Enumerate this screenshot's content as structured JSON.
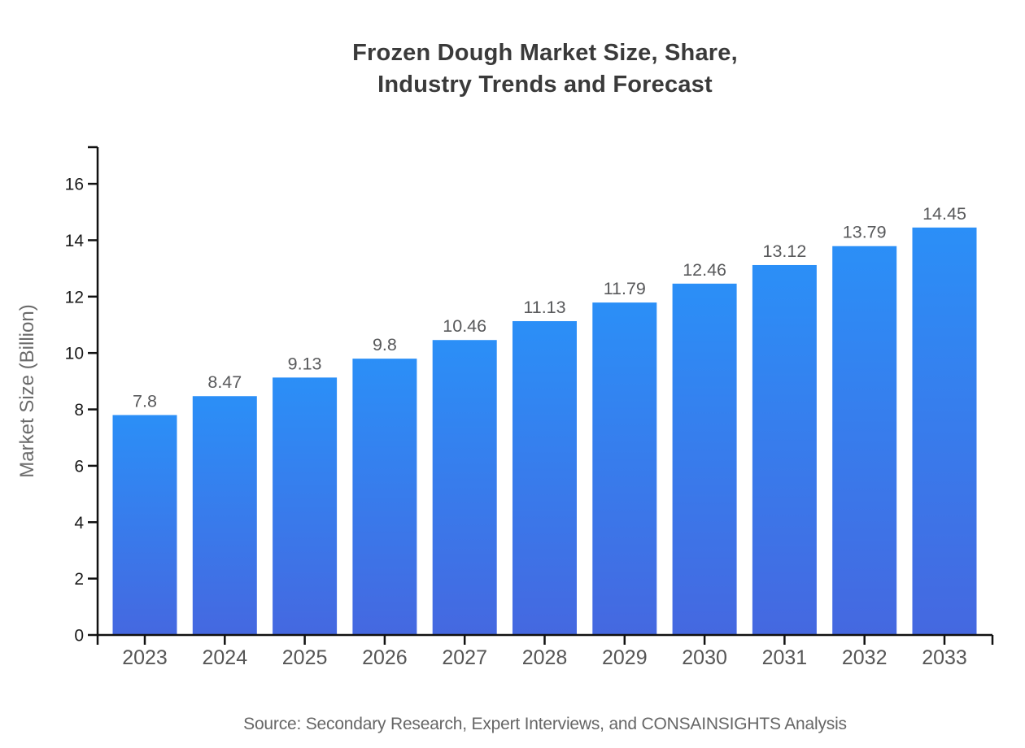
{
  "title": {
    "line1": "Frozen Dough Market Size, Share,",
    "line2": "Industry Trends and Forecast"
  },
  "source_note": "Source: Secondary Research, Expert Interviews, and CONSAINSIGHTS Analysis",
  "chart_data": {
    "type": "bar",
    "title": "Frozen Dough Market Size, Share, Industry Trends and Forecast",
    "categories": [
      "2023",
      "2024",
      "2025",
      "2026",
      "2027",
      "2028",
      "2029",
      "2030",
      "2031",
      "2032",
      "2033"
    ],
    "values": [
      7.8,
      8.47,
      9.13,
      9.8,
      10.46,
      11.13,
      11.79,
      12.46,
      13.12,
      13.79,
      14.45
    ],
    "value_labels": [
      "7.8",
      "8.47",
      "9.13",
      "9.8",
      "10.46",
      "11.13",
      "11.79",
      "12.46",
      "13.12",
      "13.79",
      "14.45"
    ],
    "xlabel": "",
    "ylabel": "Market Size (Billion)",
    "ylim": [
      0,
      17.3
    ],
    "yticks": [
      0,
      2,
      4,
      6,
      8,
      10,
      12,
      14,
      16
    ],
    "grid": false,
    "legend_position": "none",
    "colors": {
      "bar_gradient_top": "#2B8FF7",
      "bar_gradient_bottom": "#4568E0",
      "axis": "#111111",
      "y_tick_label": "#1a1a1a",
      "category_label": "#565656",
      "value_label": "#58595b",
      "title": "#3a3a3a",
      "axis_title": "#6b6b6b",
      "source": "#666666"
    }
  }
}
